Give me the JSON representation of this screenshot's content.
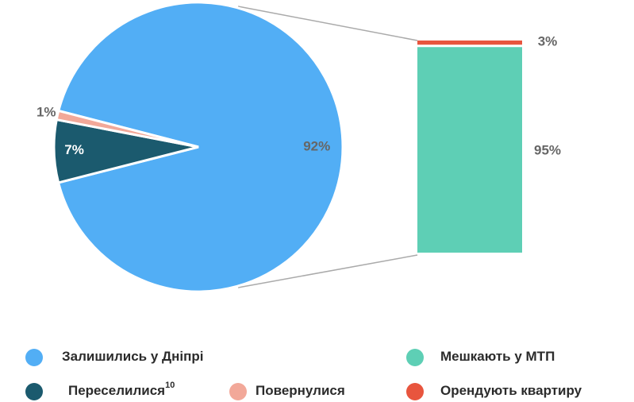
{
  "chart_data": {
    "type": "pie-of-bar",
    "pie": [
      {
        "name": "Залишились у Дніпрі",
        "value": 92,
        "value_label": "92%",
        "color": "#52aef5"
      },
      {
        "name": "Переселилися",
        "footnote": "10",
        "value": 7,
        "value_label": "7%",
        "color": "#1b5a6e"
      },
      {
        "name": "Повернулися",
        "value": 1,
        "value_label": "1%",
        "color": "#f2a899"
      }
    ],
    "bar": [
      {
        "name": "Мешкають у МТП",
        "value": 95,
        "value_label": "95%",
        "color": "#5ecfb5"
      },
      {
        "name": "Орендують квартиру",
        "value": 3,
        "value_label": "3%",
        "color": "#e8553e"
      }
    ]
  }
}
